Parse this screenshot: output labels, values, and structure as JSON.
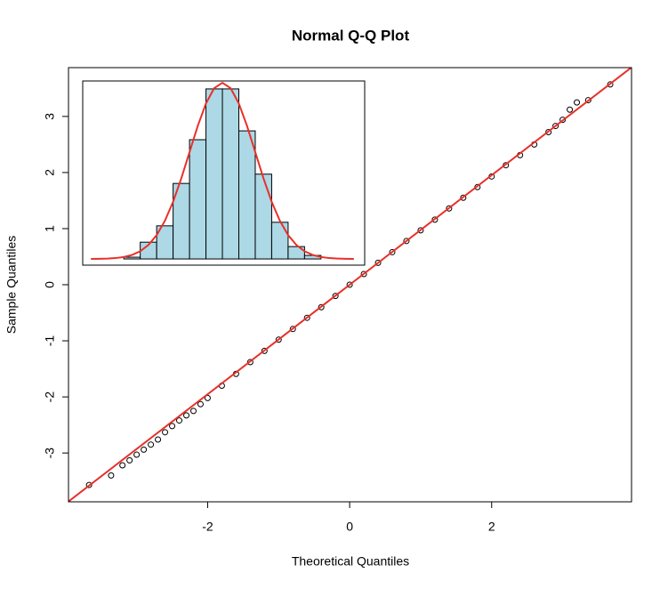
{
  "chart_data": [
    {
      "type": "scatter",
      "title": "Normal Q-Q Plot",
      "xlabel": "Theoretical Quantiles",
      "ylabel": "Sample Quantiles",
      "x": [
        -3.67,
        -3.36,
        -3.2,
        -3.1,
        -3.0,
        -2.9,
        -2.8,
        -2.7,
        -2.6,
        -2.5,
        -2.4,
        -2.3,
        -2.2,
        -2.1,
        -2.0,
        -1.8,
        -1.6,
        -1.4,
        -1.2,
        -1.0,
        -0.8,
        -0.6,
        -0.4,
        -0.2,
        0,
        0.2,
        0.4,
        0.6,
        0.8,
        1.0,
        1.2,
        1.4,
        1.6,
        1.8,
        2.0,
        2.2,
        2.4,
        2.6,
        2.8,
        2.9,
        3.0,
        3.1,
        3.2,
        3.36,
        3.67
      ],
      "y": [
        -3.57,
        -3.4,
        -3.22,
        -3.13,
        -3.03,
        -2.94,
        -2.85,
        -2.76,
        -2.63,
        -2.52,
        -2.42,
        -2.33,
        -2.25,
        -2.13,
        -2.02,
        -1.8,
        -1.59,
        -1.38,
        -1.18,
        -0.98,
        -0.79,
        -0.59,
        -0.4,
        -0.2,
        0,
        0.19,
        0.39,
        0.58,
        0.78,
        0.97,
        1.16,
        1.36,
        1.55,
        1.74,
        1.93,
        2.13,
        2.31,
        2.5,
        2.72,
        2.83,
        2.94,
        3.12,
        3.25,
        3.29,
        3.57
      ],
      "color": "#000000",
      "line": {
        "intercept": 0,
        "slope": 0.976,
        "color": "#e8302a"
      },
      "xlim": [
        -3.96,
        3.97
      ],
      "ylim": [
        -3.87,
        3.87
      ],
      "xticks": [
        -2,
        0,
        2
      ],
      "yticks": [
        -3,
        -2,
        -1,
        0,
        1,
        2,
        3
      ]
    },
    {
      "type": "histogram",
      "bins": [
        -3,
        -2.5,
        -2,
        -1.5,
        -1,
        -0.5,
        0,
        0.5,
        1,
        1.5,
        2,
        2.5,
        3
      ],
      "values": [
        0.004,
        0.038,
        0.075,
        0.171,
        0.27,
        0.385,
        0.385,
        0.29,
        0.192,
        0.083,
        0.028,
        0.008
      ],
      "color": "#add8e6",
      "curve": {
        "color": "#e8302a",
        "x": [
          -4,
          -3.75,
          -3.5,
          -3.25,
          -3,
          -2.75,
          -2.5,
          -2.25,
          -2,
          -1.75,
          -1.5,
          -1.25,
          -1,
          -0.75,
          -0.5,
          -0.25,
          0,
          0.25,
          0.5,
          0.75,
          1,
          1.25,
          1.5,
          1.75,
          2,
          2.25,
          2.5,
          2.75,
          3,
          3.25,
          3.5,
          3.75,
          4
        ],
        "y": [
          0.0001,
          0.0004,
          0.0009,
          0.002,
          0.0044,
          0.0091,
          0.0175,
          0.0317,
          0.054,
          0.0863,
          0.1295,
          0.1826,
          0.242,
          0.3011,
          0.3521,
          0.3867,
          0.3989,
          0.3867,
          0.3521,
          0.3011,
          0.242,
          0.1826,
          0.1295,
          0.0863,
          0.054,
          0.0317,
          0.0175,
          0.0091,
          0.0044,
          0.002,
          0.0009,
          0.0004,
          0.0001
        ]
      },
      "xlim": [
        -4.25,
        4.33
      ],
      "ylim": [
        -0.014,
        0.403
      ]
    }
  ]
}
